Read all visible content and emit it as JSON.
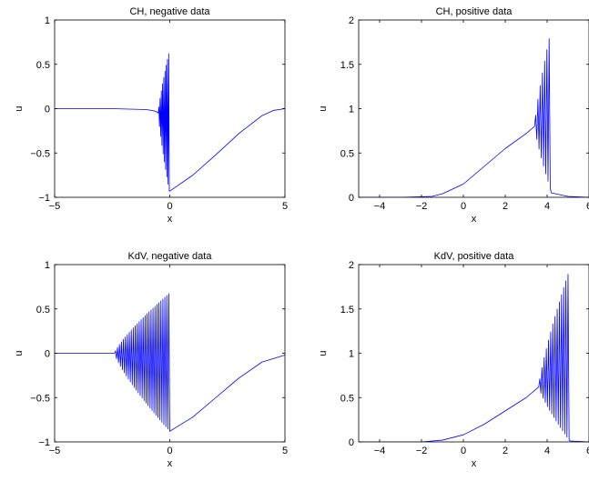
{
  "chart_data": [
    {
      "type": "line",
      "title": "CH, negative data",
      "xlabel": "x",
      "ylabel": "u",
      "xlim": [
        -5,
        5
      ],
      "ylim": [
        -1,
        1
      ],
      "xticks": [
        "−5",
        "0",
        "5"
      ],
      "yticks": [
        "−1",
        "−0.5",
        "0",
        "0.5",
        "1"
      ],
      "grid": false,
      "color": "#0000ff",
      "curve": {
        "kind": "ch_negative",
        "smooth_points": [
          [
            -5,
            0
          ],
          [
            -2.5,
            0
          ],
          [
            -1,
            -0.01
          ],
          [
            -0.6,
            -0.03
          ],
          [
            -0.5,
            -0.05
          ]
        ],
        "oscillation": {
          "start": -0.5,
          "end": -0.02,
          "count": 9,
          "upper_end": 0.65,
          "lower_end": -0.93
        },
        "tail": [
          [
            0,
            -0.93
          ],
          [
            1,
            -0.75
          ],
          [
            2,
            -0.52
          ],
          [
            3,
            -0.28
          ],
          [
            4,
            -0.08
          ],
          [
            4.5,
            -0.02
          ],
          [
            5,
            0
          ]
        ]
      }
    },
    {
      "type": "line",
      "title": "CH, positive data",
      "xlabel": "x",
      "ylabel": "u",
      "xlim": [
        -5,
        6
      ],
      "ylim": [
        0,
        2
      ],
      "xticks": [
        "−4",
        "−2",
        "0",
        "2",
        "4",
        "6"
      ],
      "yticks": [
        "0",
        "0.5",
        "1",
        "1.5",
        "2"
      ],
      "grid": false,
      "color": "#0000ff",
      "curve": {
        "kind": "ch_positive",
        "smooth_points": [
          [
            -5,
            0
          ],
          [
            -3,
            0
          ],
          [
            -1.5,
            0.01
          ],
          [
            -1,
            0.04
          ],
          [
            0,
            0.15
          ],
          [
            1,
            0.35
          ],
          [
            2,
            0.55
          ],
          [
            3,
            0.72
          ],
          [
            3.4,
            0.8
          ]
        ],
        "oscillation": {
          "start": 3.4,
          "end": 4.15,
          "count": 7,
          "upper_end": 1.85,
          "lower_end": 0.1
        },
        "tail": [
          [
            4.2,
            0.05
          ],
          [
            5,
            0.01
          ],
          [
            6,
            0
          ]
        ]
      }
    },
    {
      "type": "line",
      "title": "KdV, negative data",
      "xlabel": "x",
      "ylabel": "u",
      "xlim": [
        -5,
        5
      ],
      "ylim": [
        -1,
        1
      ],
      "xticks": [
        "−5",
        "0",
        "5"
      ],
      "yticks": [
        "−1",
        "−0.5",
        "0",
        "0.5",
        "1"
      ],
      "grid": false,
      "color": "#0000ff",
      "curve": {
        "kind": "kdv_negative",
        "smooth_points": [
          [
            -5,
            0
          ],
          [
            -2.4,
            0
          ]
        ],
        "oscillation": {
          "start": -2.4,
          "end": 0,
          "count": 28,
          "upper_end": 0.68,
          "lower_end": -0.88
        },
        "tail": [
          [
            0,
            -0.88
          ],
          [
            1,
            -0.72
          ],
          [
            2,
            -0.5
          ],
          [
            3,
            -0.28
          ],
          [
            4,
            -0.1
          ],
          [
            5,
            -0.02
          ]
        ]
      }
    },
    {
      "type": "line",
      "title": "KdV, positive data",
      "xlabel": "x",
      "ylabel": "u",
      "xlim": [
        -5,
        6
      ],
      "ylim": [
        0,
        2
      ],
      "xticks": [
        "−4",
        "−2",
        "0",
        "2",
        "4",
        "6"
      ],
      "yticks": [
        "0",
        "0.5",
        "1",
        "1.5",
        "2"
      ],
      "grid": false,
      "color": "#0000ff",
      "curve": {
        "kind": "kdv_positive",
        "smooth_points": [
          [
            -5,
            0
          ],
          [
            -2,
            0
          ],
          [
            -1,
            0.02
          ],
          [
            0,
            0.08
          ],
          [
            1,
            0.2
          ],
          [
            2,
            0.35
          ],
          [
            3,
            0.5
          ],
          [
            3.6,
            0.62
          ]
        ],
        "oscillation": {
          "start": 3.6,
          "end": 5.05,
          "count": 14,
          "upper_end": 1.93,
          "lower_end": 0.02
        },
        "tail": [
          [
            5.1,
            0.01
          ],
          [
            6,
            0
          ]
        ]
      }
    }
  ]
}
